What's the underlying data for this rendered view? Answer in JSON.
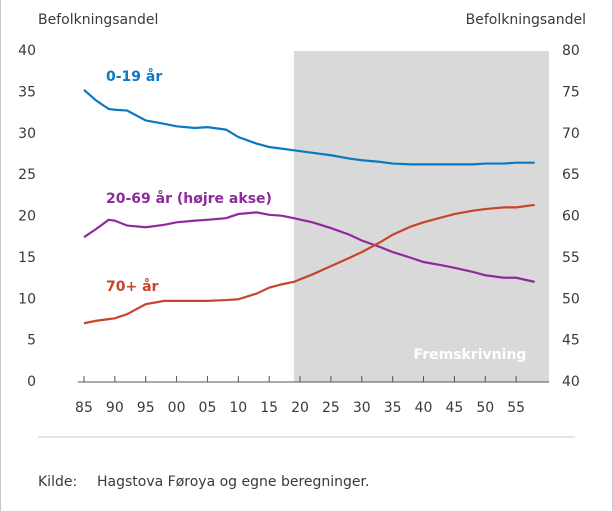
{
  "chart_data": {
    "type": "line",
    "ylabel": "Befolkningsandel",
    "y2label": "Befolkningsandel",
    "source_label": "Kilde:",
    "source": "Hagstova Føroya og egne beregninger.",
    "forecast": {
      "label": "Fremskrivning",
      "start": 2019,
      "color": "#d9d9d9"
    },
    "x": [
      1985,
      1987,
      1989,
      1990,
      1992,
      1995,
      1998,
      2000,
      2003,
      2005,
      2008,
      2010,
      2013,
      2015,
      2017,
      2019,
      2022,
      2025,
      2028,
      2030,
      2033,
      2035,
      2038,
      2040,
      2043,
      2045,
      2048,
      2050,
      2053,
      2055,
      2058
    ],
    "series": [
      {
        "name": "0-19 år",
        "color": "#0a78c2",
        "values": [
          35.3,
          34.0,
          33.0,
          32.9,
          32.8,
          31.6,
          31.2,
          30.9,
          30.7,
          30.8,
          30.5,
          29.6,
          28.8,
          28.4,
          28.2,
          28.0,
          27.7,
          27.4,
          27.0,
          26.8,
          26.6,
          26.4,
          26.3,
          26.3,
          26.3,
          26.3,
          26.3,
          26.4,
          26.4,
          26.5,
          26.5
        ]
      },
      {
        "name": "20-69 år (højre akse)",
        "color": "#8e2a9c",
        "axis": "y2",
        "values": [
          57.5,
          58.5,
          59.6,
          59.5,
          58.9,
          58.7,
          59.0,
          59.3,
          59.5,
          59.6,
          59.8,
          60.3,
          60.5,
          60.2,
          60.1,
          59.8,
          59.3,
          58.6,
          57.8,
          57.1,
          56.3,
          55.7,
          55.0,
          54.5,
          54.1,
          53.8,
          53.3,
          52.9,
          52.6,
          52.6,
          52.1
        ]
      },
      {
        "name": "70+ år",
        "color": "#c8452b",
        "values": [
          7.1,
          7.4,
          7.6,
          7.7,
          8.2,
          9.4,
          9.8,
          9.8,
          9.8,
          9.8,
          9.9,
          10.0,
          10.7,
          11.4,
          11.8,
          12.1,
          13.0,
          14.0,
          15.0,
          15.7,
          16.9,
          17.8,
          18.8,
          19.3,
          19.9,
          20.3,
          20.7,
          20.9,
          21.1,
          21.1,
          21.4
        ]
      }
    ],
    "xlim": [
      1984,
      2060
    ],
    "xticks": [
      {
        "value": 1985,
        "label": "85"
      },
      {
        "value": 1990,
        "label": "90"
      },
      {
        "value": 1995,
        "label": "95"
      },
      {
        "value": 2000,
        "label": "00"
      },
      {
        "value": 2005,
        "label": "05"
      },
      {
        "value": 2010,
        "label": "10"
      },
      {
        "value": 2015,
        "label": "15"
      },
      {
        "value": 2020,
        "label": "20"
      },
      {
        "value": 2025,
        "label": "25"
      },
      {
        "value": 2030,
        "label": "30"
      },
      {
        "value": 2035,
        "label": "35"
      },
      {
        "value": 2040,
        "label": "40"
      },
      {
        "value": 2045,
        "label": "45"
      },
      {
        "value": 2050,
        "label": "50"
      },
      {
        "value": 2055,
        "label": "55"
      }
    ],
    "ylim": [
      0,
      40
    ],
    "yticks": [
      0,
      5,
      10,
      15,
      20,
      25,
      30,
      35,
      40
    ],
    "y2lim": [
      40,
      80
    ],
    "y2ticks": [
      40,
      45,
      50,
      55,
      60,
      65,
      70,
      75,
      80
    ]
  }
}
